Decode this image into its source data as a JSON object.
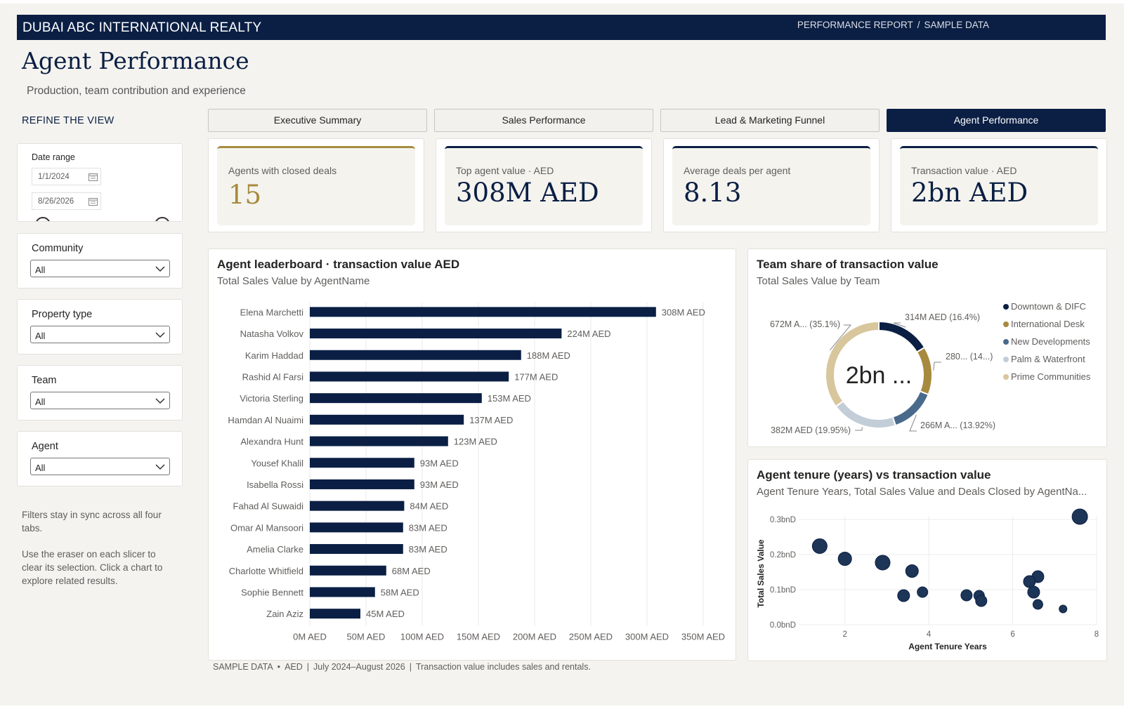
{
  "banner": {
    "org": "DUBAI ABC INTERNATIONAL REALTY",
    "crumb_report": "PERFORMANCE REPORT",
    "crumb_sep": "/",
    "crumb_data": "SAMPLE DATA"
  },
  "page": {
    "title": "Agent Performance",
    "subtitle": "Production, team contribution and experience"
  },
  "sidebar": {
    "heading": "REFINE THE VIEW",
    "date": {
      "label": "Date range",
      "start": "1/1/2024",
      "end": "8/26/2026",
      "icon": "calendar-icon"
    },
    "slicers": [
      {
        "label": "Community",
        "value": "All"
      },
      {
        "label": "Property type",
        "value": "All"
      },
      {
        "label": "Team",
        "value": "All"
      },
      {
        "label": "Agent",
        "value": "All"
      }
    ],
    "help1": "Filters stay in sync across all four tabs.",
    "help2": "Use the eraser on each slicer to clear its selection. Click a chart to explore related results."
  },
  "tabs": [
    {
      "label": "Executive Summary",
      "active": false
    },
    {
      "label": "Sales Performance",
      "active": false
    },
    {
      "label": "Lead & Marketing Funnel",
      "active": false
    },
    {
      "label": "Agent Performance",
      "active": true
    }
  ],
  "kpis": [
    {
      "label": "Agents with closed deals",
      "value": "15",
      "accent": "#a78a3e"
    },
    {
      "label": "Top agent value · AED",
      "value": "308M AED",
      "accent": "#0b1f44"
    },
    {
      "label": "Average deals per agent",
      "value": "8.13",
      "accent": "#0b1f44"
    },
    {
      "label": "Transaction value · AED",
      "value": "2bn AED",
      "accent": "#0b1f44"
    }
  ],
  "leaderboard": {
    "title": "Agent leaderboard · transaction value AED",
    "subtitle": "Total Sales Value by AgentName"
  },
  "team_share": {
    "title": "Team share of transaction value",
    "subtitle": "Total Sales Value by Team"
  },
  "tenure": {
    "title": "Agent tenure (years) vs transaction value",
    "subtitle": "Agent Tenure Years, Total Sales Value and Deals Closed by AgentNa..."
  },
  "footer": {
    "sample": "SAMPLE DATA",
    "dot": "•",
    "currency": "AED",
    "bar": "|",
    "period": "July 2024–August 2026",
    "note": "Transaction value includes sales and rentals."
  },
  "colors": {
    "navy": "#0b1f44",
    "gold": "#a78a3e",
    "bar": "#0b1f44"
  },
  "chart_data": [
    {
      "type": "bar",
      "orientation": "horizontal",
      "categories": [
        "Elena Marchetti",
        "Natasha Volkov",
        "Karim Haddad",
        "Rashid Al Farsi",
        "Victoria Sterling",
        "Hamdan Al Nuaimi",
        "Alexandra Hunt",
        "Yousef Khalil",
        "Isabella Rossi",
        "Fahad Al Suwaidi",
        "Omar Al Mansoori",
        "Amelia Clarke",
        "Charlotte Whitfield",
        "Sophie Bennett",
        "Zain Aziz"
      ],
      "values": [
        308,
        224,
        188,
        177,
        153,
        137,
        123,
        93,
        93,
        84,
        83,
        83,
        68,
        58,
        45
      ],
      "data_labels": [
        "308M AED",
        "224M AED",
        "188M AED",
        "177M AED",
        "153M AED",
        "137M AED",
        "123M AED",
        "93M AED",
        "93M AED",
        "84M AED",
        "83M AED",
        "83M AED",
        "68M AED",
        "58M AED",
        "45M AED"
      ],
      "xticks": [
        "0M AED",
        "50M AED",
        "100M AED",
        "150M AED",
        "200M AED",
        "250M AED",
        "300M AED",
        "350M AED"
      ],
      "xlim": [
        0,
        350
      ],
      "grid": true
    },
    {
      "type": "pie",
      "variant": "donut",
      "center_label": "2bn ...",
      "slices": [
        {
          "name": "Downtown & DIFC",
          "value": 314,
          "label": "314M AED (16.4%)",
          "color": "#0b1f44"
        },
        {
          "name": "International Desk",
          "value": 280,
          "label": "280... (14...)",
          "color": "#a78a3e"
        },
        {
          "name": "New Developments",
          "value": 266,
          "label": "266M A... (13.92%)",
          "color": "#4a6a8c"
        },
        {
          "name": "Palm & Waterfront",
          "value": 382,
          "label": "382M AED (19.95%)",
          "color": "#c3cdd8"
        },
        {
          "name": "Prime Communities",
          "value": 672,
          "label": "672M A... (35.1%)",
          "color": "#d8c69c"
        }
      ],
      "legend": "right"
    },
    {
      "type": "scatter",
      "xlabel": "Agent Tenure Years",
      "ylabel": "Total Sales Value",
      "xticks": [
        "2",
        "4",
        "6",
        "8"
      ],
      "yticks": [
        "0.0bnD",
        "0.1bnD",
        "0.2bnD",
        "0.3bnD"
      ],
      "xlim": [
        0.9,
        8
      ],
      "ylim": [
        0,
        0.3
      ],
      "grid": true,
      "points": [
        {
          "x": 7.6,
          "y": 0.308,
          "size": 22
        },
        {
          "x": 1.4,
          "y": 0.224,
          "size": 21
        },
        {
          "x": 2.9,
          "y": 0.177,
          "size": 21
        },
        {
          "x": 2.0,
          "y": 0.188,
          "size": 19
        },
        {
          "x": 3.6,
          "y": 0.153,
          "size": 18
        },
        {
          "x": 6.6,
          "y": 0.137,
          "size": 17
        },
        {
          "x": 6.4,
          "y": 0.123,
          "size": 17
        },
        {
          "x": 6.5,
          "y": 0.093,
          "size": 17
        },
        {
          "x": 3.4,
          "y": 0.083,
          "size": 17
        },
        {
          "x": 3.85,
          "y": 0.093,
          "size": 15
        },
        {
          "x": 4.9,
          "y": 0.084,
          "size": 16
        },
        {
          "x": 5.2,
          "y": 0.083,
          "size": 15
        },
        {
          "x": 5.25,
          "y": 0.068,
          "size": 16
        },
        {
          "x": 6.6,
          "y": 0.058,
          "size": 14
        },
        {
          "x": 7.2,
          "y": 0.045,
          "size": 11
        }
      ]
    }
  ]
}
